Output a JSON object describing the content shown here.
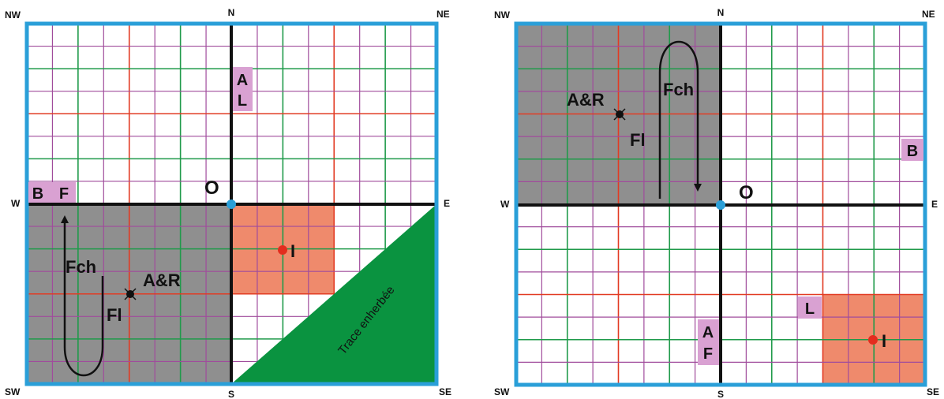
{
  "colors": {
    "frame": "#2a9fd8",
    "grid_purple": "#a04c9c",
    "grid_green": "#1f9a4a",
    "grid_red": "#e23b23",
    "axis": "#111111",
    "shaded_area": "#8f8f8f",
    "orange_zone": "#ef8a6c",
    "green_track": "#0a9340",
    "pink_tag": "#d9a1d2",
    "origin_dot": "#2a9fd8",
    "red_dot": "#e32c1e"
  },
  "left_panel": {
    "directions": {
      "nw": "NW",
      "n": "N",
      "ne": "NE",
      "w": "W",
      "e": "E",
      "sw": "SW",
      "s": "S",
      "se": "SE"
    },
    "origin": "O",
    "tag_top_1": "A",
    "tag_top_2": "L",
    "tag_left_1": "B",
    "tag_left_2": "F",
    "fch": "Fch",
    "ar": "A&R",
    "fl": "Fl",
    "i": "I",
    "track": "Trace enherbée"
  },
  "right_panel": {
    "directions": {
      "nw": "NW",
      "n": "N",
      "ne": "NE",
      "w": "W",
      "e": "E",
      "sw": "SW",
      "s": "S",
      "se": "SE"
    },
    "origin": "O",
    "tag_right": "B",
    "tag_l": "L",
    "tag_bottom_1": "A",
    "tag_bottom_2": "F",
    "fch": "Fch",
    "ar": "A&R",
    "fl": "Fl",
    "i": "I"
  }
}
